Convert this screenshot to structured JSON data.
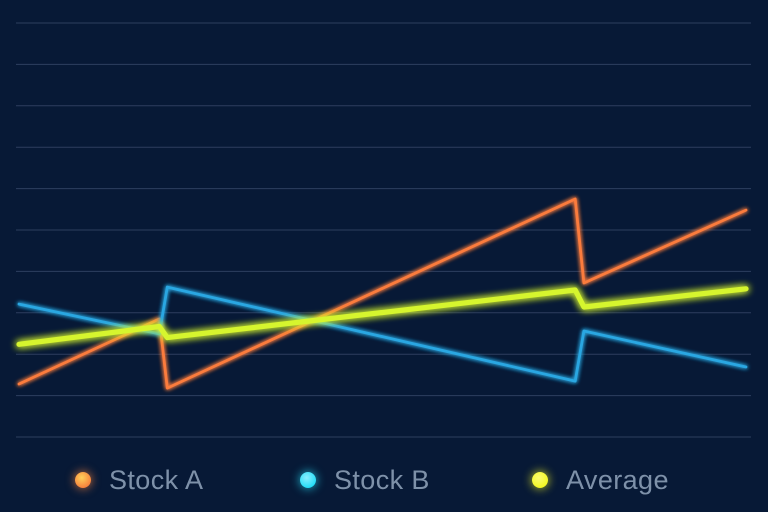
{
  "legend": {
    "items": [
      {
        "label": "Stock A",
        "color": "#fb7b3e",
        "dot_color": "#f8823c",
        "dot_highlight": "#ffd05a"
      },
      {
        "label": "Stock B",
        "color": "#2ba7e2",
        "dot_color": "#24ddf6",
        "dot_highlight": "#8aefff"
      },
      {
        "label": "Average",
        "color": "#d6f52f",
        "dot_color": "#f4f823",
        "dot_highlight": "#fbfb70"
      }
    ]
  },
  "chart_data": {
    "type": "line",
    "title": "",
    "xlabel": "",
    "ylabel": "",
    "x_range": [
      0,
      100
    ],
    "y_range": [
      0,
      100
    ],
    "grid": {
      "horizontal_y_values": [
        0,
        10,
        20,
        30,
        40,
        50,
        60,
        70,
        80,
        90,
        100
      ],
      "vertical_lines": false
    },
    "legend_position": "bottom",
    "background_color": "#071936",
    "gridline_color": "#344566",
    "axis_tick_labels": "none",
    "series": [
      {
        "name": "Stock A",
        "color": "#fb7b3e",
        "line_width": 2.8,
        "glow": "soft",
        "points": [
          [
            0,
            12.8
          ],
          [
            19.3,
            28.5
          ],
          [
            20.4,
            11.8
          ],
          [
            76.5,
            57.5
          ],
          [
            77.7,
            37.2
          ],
          [
            100,
            54.8
          ]
        ]
      },
      {
        "name": "Stock B",
        "color": "#2ba7e2",
        "line_width": 2.8,
        "glow": "soft",
        "points": [
          [
            0,
            32.1
          ],
          [
            19.3,
            24.9
          ],
          [
            20.4,
            36.2
          ],
          [
            76.5,
            13.5
          ],
          [
            77.7,
            25.6
          ],
          [
            100,
            16.9
          ]
        ]
      },
      {
        "name": "Average",
        "color": "#d6f52f",
        "line_width": 5.2,
        "glow": "strong",
        "points": [
          [
            0,
            22.4
          ],
          [
            19.3,
            26.7
          ],
          [
            20.4,
            24.0
          ],
          [
            76.5,
            35.5
          ],
          [
            77.7,
            31.4
          ],
          [
            100,
            35.8
          ]
        ]
      }
    ]
  }
}
